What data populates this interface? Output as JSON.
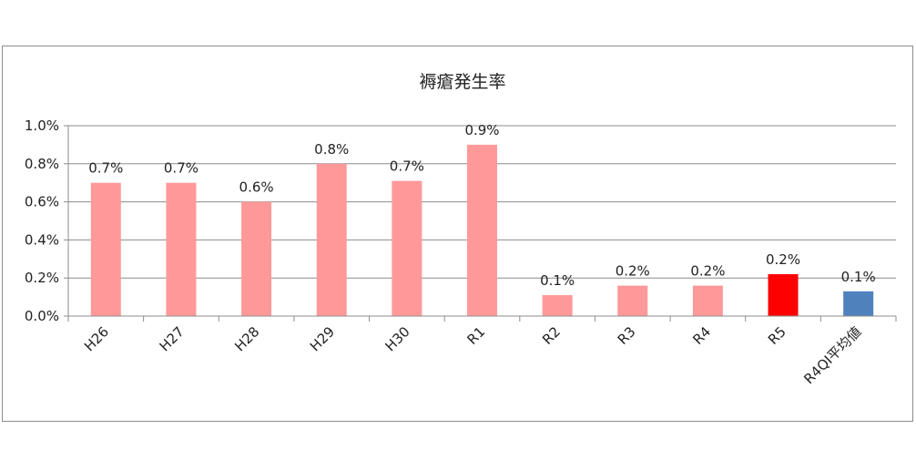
{
  "chart_data": {
    "type": "bar",
    "title": "褥瘡発生率",
    "xlabel": "",
    "ylabel": "",
    "categories": [
      "H26",
      "H27",
      "H28",
      "H29",
      "H30",
      "R1",
      "R2",
      "R3",
      "R4",
      "R5",
      "R4QI平均値"
    ],
    "values": [
      0.7,
      0.7,
      0.6,
      0.8,
      0.71,
      0.9,
      0.11,
      0.16,
      0.16,
      0.22,
      0.13
    ],
    "data_labels": [
      "0.7%",
      "0.7%",
      "0.6%",
      "0.8%",
      "0.7%",
      "0.9%",
      "0.1%",
      "0.2%",
      "0.2%",
      "0.2%",
      "0.1%"
    ],
    "colors": [
      "#ff9999",
      "#ff9999",
      "#ff9999",
      "#ff9999",
      "#ff9999",
      "#ff9999",
      "#ff9999",
      "#ff9999",
      "#ff9999",
      "#ff0000",
      "#4f81bd"
    ],
    "ylim": [
      0,
      1.0
    ],
    "yticks": [
      0,
      0.2,
      0.4,
      0.6,
      0.8,
      1.0
    ],
    "ytick_labels": [
      "0.0%",
      "0.2%",
      "0.4%",
      "0.6%",
      "0.8%",
      "1.0%"
    ],
    "grid": true,
    "legend": "none"
  }
}
